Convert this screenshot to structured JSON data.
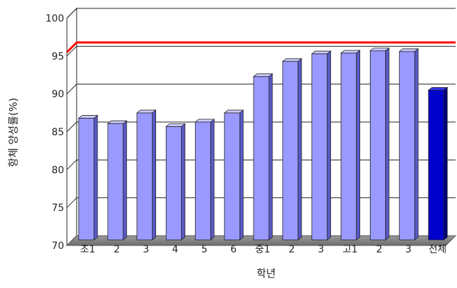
{
  "chart_data": {
    "type": "bar",
    "title": "",
    "xlabel": "학년",
    "ylabel": "항체 양성률(%)",
    "categories": [
      "초1",
      "2",
      "3",
      "4",
      "5",
      "6",
      "중1",
      "2",
      "3",
      "고1",
      "2",
      "3",
      "전체"
    ],
    "values": [
      85.5,
      84.8,
      86.2,
      84.4,
      85.0,
      86.2,
      91.0,
      93.0,
      94.0,
      94.1,
      94.4,
      94.3,
      89.2
    ],
    "ylim": [
      70,
      100
    ],
    "yticks": [
      70,
      75,
      80,
      85,
      90,
      95,
      100
    ],
    "grid": true,
    "reference_line": {
      "value": 95.5,
      "color": "#ff0000"
    },
    "colors": {
      "bar_face": "#9999ff",
      "bar_highlight": "#0000cc",
      "floor": "#808080",
      "grid": "#222222"
    }
  }
}
